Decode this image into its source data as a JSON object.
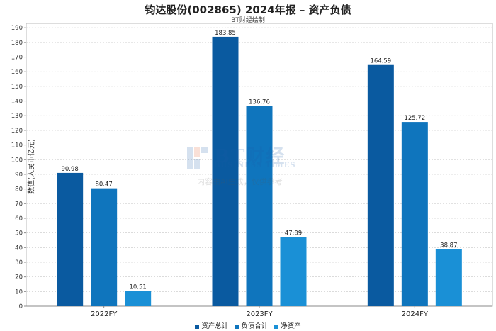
{
  "title": "钧达股份(002865) 2024年报 – 资产负债",
  "subtitle": "BT财经绘制",
  "watermark": {
    "brand_text": "BT财经",
    "brand_en": "BUSINESS TIMES",
    "notice": "内容由AI生成，仅供参考"
  },
  "chart_data": {
    "type": "bar",
    "title": "钧达股份(002865) 2024年报 – 资产负债",
    "subtitle": "BT财经绘制",
    "xlabel": "",
    "ylabel": "数值(人民币亿元)",
    "categories": [
      "2022FY",
      "2023FY",
      "2024FY"
    ],
    "series": [
      {
        "name": "资产总计",
        "color": "#0a5aa0",
        "values": [
          90.98,
          183.85,
          164.59
        ]
      },
      {
        "name": "负债合计",
        "color": "#0f75bd",
        "values": [
          80.47,
          136.76,
          125.72
        ]
      },
      {
        "name": "净资产",
        "color": "#1a90d6",
        "values": [
          10.51,
          47.09,
          38.87
        ]
      }
    ],
    "ylim": [
      0,
      193
    ],
    "yticks": [
      0,
      10,
      20,
      30,
      40,
      50,
      60,
      70,
      80,
      90,
      100,
      110,
      120,
      130,
      140,
      150,
      160,
      170,
      180,
      190
    ],
    "grid": true,
    "legend_position": "bottom-center"
  }
}
